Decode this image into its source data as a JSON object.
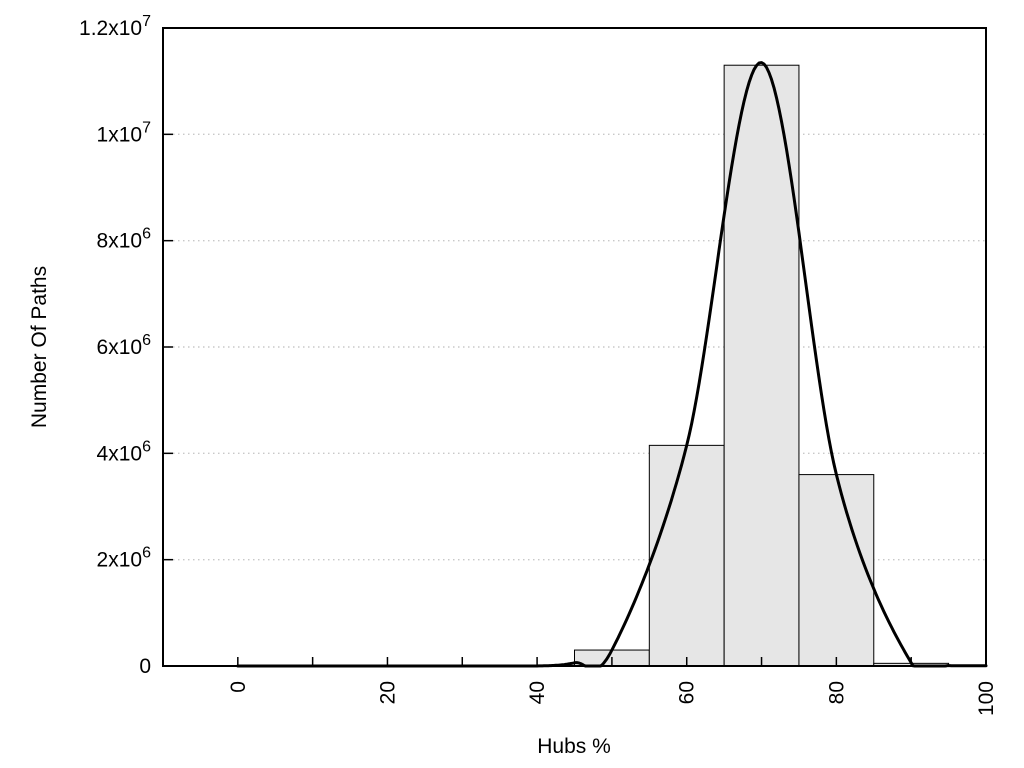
{
  "chart_data": {
    "type": "bar",
    "subtype": "histogram-with-fit-curve",
    "title": "",
    "xlabel": "Hubs %",
    "ylabel": "Number Of Paths",
    "xlim": [
      -10,
      100
    ],
    "ylim": [
      0,
      12000000
    ],
    "grid": "dotted horizontal lines at labeled y ticks",
    "legend": "none",
    "bins": [
      {
        "x0": 45,
        "x1": 55,
        "value": 300000
      },
      {
        "x0": 55,
        "x1": 65,
        "value": 4150000
      },
      {
        "x0": 65,
        "x1": 75,
        "value": 11300000
      },
      {
        "x0": 75,
        "x1": 85,
        "value": 3600000
      },
      {
        "x0": 85,
        "x1": 95,
        "value": 50000
      }
    ],
    "fit_curve": {
      "description": "smooth bell curve through histogram bin centers, peak ~1.135e7 at x=70",
      "points": [
        [
          0,
          0
        ],
        [
          10,
          0
        ],
        [
          20,
          0
        ],
        [
          30,
          0
        ],
        [
          40,
          0
        ],
        [
          45,
          60000
        ],
        [
          50,
          300000
        ],
        [
          60,
          4150000
        ],
        [
          70,
          11350000
        ],
        [
          80,
          3600000
        ],
        [
          90,
          60000
        ],
        [
          95,
          8000
        ],
        [
          100,
          5000
        ]
      ]
    },
    "xticks": {
      "all": [
        0,
        10,
        20,
        30,
        40,
        50,
        60,
        70,
        80,
        90,
        100
      ],
      "labeled": [
        0,
        20,
        40,
        60,
        80,
        100
      ],
      "rotation_deg": -90
    },
    "yticks": [
      {
        "value": 0,
        "mantissa": "0",
        "exponent": ""
      },
      {
        "value": 2000000,
        "mantissa": "2x10",
        "exponent": "6"
      },
      {
        "value": 4000000,
        "mantissa": "4x10",
        "exponent": "6"
      },
      {
        "value": 6000000,
        "mantissa": "6x10",
        "exponent": "6"
      },
      {
        "value": 8000000,
        "mantissa": "8x10",
        "exponent": "6"
      },
      {
        "value": 10000000,
        "mantissa": "1x10",
        "exponent": "7"
      },
      {
        "value": 12000000,
        "mantissa": "1.2x10",
        "exponent": "7"
      }
    ],
    "colors": {
      "bar_fill": "#e6e6e6",
      "bar_border": "#000000",
      "curve": "#000000",
      "axis": "#000000",
      "grid": "#c8c8c8",
      "text": "#000000",
      "background": "#ffffff"
    }
  }
}
